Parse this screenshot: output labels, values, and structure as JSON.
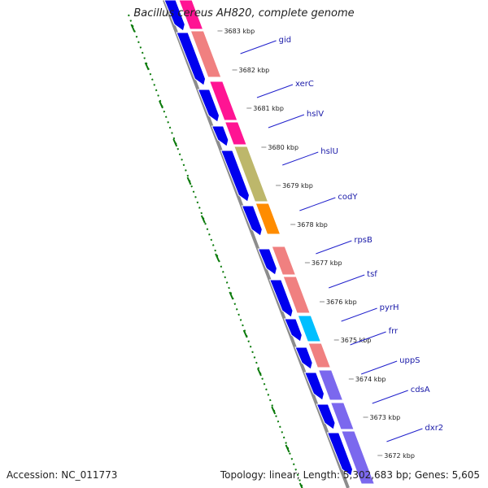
{
  "title": "Bacillus cereus AH820, complete genome",
  "footer": {
    "accession": "Accession: NC_011773",
    "summary": "Topology: linear; Length: 5,302,683 bp; Genes: 5,605"
  },
  "colors": {
    "backbone": "#8c8c8c",
    "strand_arrow": "#0000ee",
    "ruler": "#0a7a0a",
    "label_line": "#2020cc",
    "label_text": "#1a1aa8"
  },
  "kbp_labels": [
    "3683 kbp",
    "3682 kbp",
    "3681 kbp",
    "3680 kbp",
    "3679 kbp",
    "3678 kbp",
    "3677 kbp",
    "3676 kbp",
    "3675 kbp",
    "3674 kbp",
    "3673 kbp",
    "3672 kbp"
  ],
  "genes": [
    {
      "name": "gid",
      "color": "#f08080"
    },
    {
      "name": "xerC",
      "color": "#ff1493"
    },
    {
      "name": "hslV",
      "color": "#ff1493"
    },
    {
      "name": "hslU",
      "color": "#bdb76b"
    },
    {
      "name": "codY",
      "color": "#ff8c00"
    },
    {
      "name": "rpsB",
      "color": "#f08080"
    },
    {
      "name": "tsf",
      "color": "#f08080"
    },
    {
      "name": "pyrH",
      "color": "#00bfff"
    },
    {
      "name": "frr",
      "color": "#f08080"
    },
    {
      "name": "uppS",
      "color": "#7b68ee"
    },
    {
      "name": "cdsA",
      "color": "#7b68ee"
    },
    {
      "name": "dxr2",
      "color": "#7b68ee"
    }
  ]
}
